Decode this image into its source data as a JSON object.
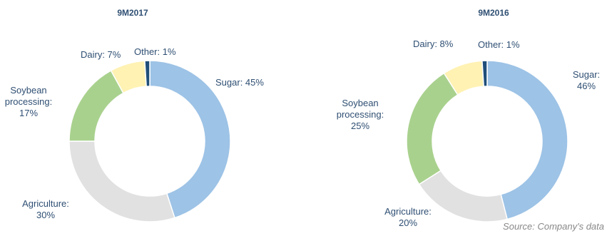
{
  "source_note": "Source: Company's data",
  "chart_data": [
    {
      "type": "pie",
      "title": "9M2017",
      "slices": [
        {
          "name": "Sugar",
          "value": 45,
          "color": "#9dc3e6",
          "label": [
            "Sugar: 45%"
          ]
        },
        {
          "name": "Agriculture",
          "value": 30,
          "color": "#e1e1e1",
          "label": [
            "Agriculture:",
            "30%"
          ]
        },
        {
          "name": "Soybean processing",
          "value": 17,
          "color": "#a9d18e",
          "label": [
            "Soybean",
            "processing:",
            "17%"
          ]
        },
        {
          "name": "Dairy",
          "value": 7,
          "color": "#fff2b3",
          "label": [
            "Dairy: 7%"
          ]
        },
        {
          "name": "Other",
          "value": 1,
          "color": "#1f4e79",
          "label": [
            "Other: 1%"
          ]
        }
      ]
    },
    {
      "type": "pie",
      "title": "9M2016",
      "slices": [
        {
          "name": "Sugar",
          "value": 46,
          "color": "#9dc3e6",
          "label": [
            "Sugar:",
            "46%"
          ]
        },
        {
          "name": "Agriculture",
          "value": 20,
          "color": "#e1e1e1",
          "label": [
            "Agriculture:",
            "20%"
          ]
        },
        {
          "name": "Soybean processing",
          "value": 25,
          "color": "#a9d18e",
          "label": [
            "Soybean",
            "processing:",
            "25%"
          ]
        },
        {
          "name": "Dairy",
          "value": 8,
          "color": "#fff2b3",
          "label": [
            "Dairy: 8%"
          ]
        },
        {
          "name": "Other",
          "value": 1,
          "color": "#1f4e79",
          "label": [
            "Other: 1%"
          ]
        }
      ]
    }
  ]
}
